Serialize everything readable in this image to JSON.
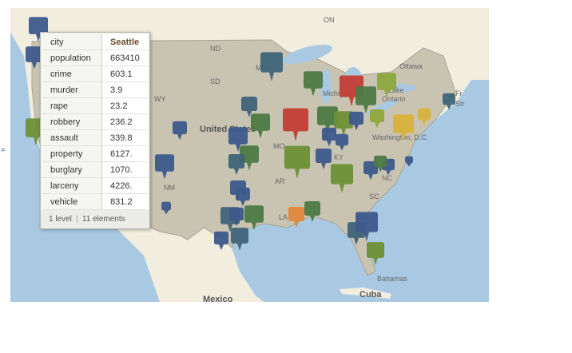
{
  "side_mark": "=",
  "map": {
    "labels": [
      "ON",
      "ND",
      "SD",
      "MN",
      "WY",
      "United States",
      "Ottawa",
      "Michigan",
      "Ontario",
      "Lake",
      "Washington, D.C.",
      "MO",
      "KY",
      "NC",
      "SC",
      "AR",
      "LA",
      "NM",
      "Bahamas",
      "Cuba",
      "Mexico",
      "Fr",
      "Str"
    ]
  },
  "tooltip": {
    "rows": [
      [
        "city",
        "Seattle"
      ],
      [
        "population",
        "663410"
      ],
      [
        "crime",
        "603.1"
      ],
      [
        "murder",
        "3.9"
      ],
      [
        "rape",
        "23.2"
      ],
      [
        "robbery",
        "236.2"
      ],
      [
        "assault",
        "339.8"
      ],
      [
        "property",
        "6127."
      ],
      [
        "burglary",
        "1070."
      ],
      [
        "larceny",
        "4226."
      ],
      [
        "vehicle",
        "831.2"
      ]
    ],
    "footer": [
      "1 level",
      "11 elements"
    ]
  }
}
